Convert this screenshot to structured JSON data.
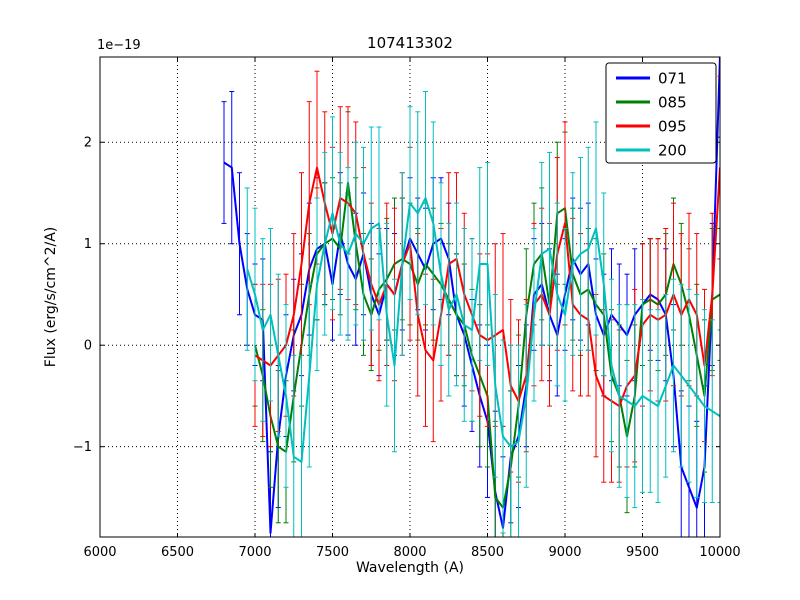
{
  "figure": {
    "background": "#ffffff",
    "frame_color": "#000000"
  },
  "chart_data": {
    "type": "line",
    "title": "107413302",
    "xlabel": "Wavelength (A)",
    "ylabel": "Flux (erg/s/cm^2/A)",
    "y_offset_label": "1e−19",
    "xlim": [
      6000,
      10000
    ],
    "ylim": [
      -1.89,
      2.84
    ],
    "xticks": [
      6000,
      6500,
      7000,
      7500,
      8000,
      8500,
      9000,
      9500,
      10000
    ],
    "xticklabels": [
      "6000",
      "6500",
      "7000",
      "7500",
      "8000",
      "8500",
      "9000",
      "9500",
      "10000"
    ],
    "yticks": [
      -1,
      0,
      1,
      2
    ],
    "yticklabels": [
      "−1",
      "0",
      "1",
      "2"
    ],
    "grid": true,
    "grid_style": "dotted",
    "legend_position": "upper right",
    "series": [
      {
        "name": "071",
        "color": "#0000ff",
        "x_start": 6800,
        "x_step": 50,
        "y": [
          1.8,
          1.75,
          1.0,
          0.55,
          0.3,
          0.25,
          -1.85,
          -0.9,
          -0.3,
          0.1,
          0.3,
          0.75,
          0.95,
          1.0,
          0.6,
          1.1,
          0.8,
          0.65,
          0.9,
          0.5,
          0.3,
          0.6,
          0.5,
          0.8,
          1.05,
          0.9,
          0.75,
          1.0,
          1.05,
          0.85,
          0.3,
          0.1,
          -0.2,
          -0.5,
          -0.75,
          -1.45,
          -1.8,
          -1.1,
          -0.9,
          -0.4,
          0.5,
          0.6,
          0.3,
          0.1,
          0.5,
          0.85,
          0.7,
          0.8,
          0.3,
          0.1,
          0.3,
          0.2,
          0.1,
          0.3,
          0.4,
          0.5,
          0.45,
          0.3,
          -0.3,
          -1.2,
          -1.4,
          -1.6,
          -1.2,
          0.5,
          2.85
        ],
        "yerr": [
          0.6,
          0.75,
          0.7,
          0.55,
          0.5,
          0.6,
          0.8,
          0.7,
          0.6,
          0.55,
          0.6,
          0.65,
          0.7,
          0.6,
          0.55,
          0.6,
          0.7,
          0.65,
          0.6,
          0.7,
          0.6,
          0.55,
          0.6,
          0.65,
          0.6,
          0.55,
          0.6,
          0.65,
          0.6,
          0.55,
          0.6,
          0.7,
          0.65,
          0.7,
          0.75,
          0.8,
          0.7,
          0.65,
          0.7,
          0.6,
          0.55,
          0.6,
          0.65,
          0.6,
          0.55,
          0.6,
          0.65,
          0.6,
          0.55,
          0.6,
          0.65,
          0.6,
          0.6,
          0.65,
          0.6,
          0.55,
          0.6,
          0.65,
          0.7,
          0.75,
          0.8,
          0.85,
          0.8,
          0.7,
          0.8
        ]
      },
      {
        "name": "085",
        "color": "#008000",
        "x_start": 7000,
        "x_step": 50,
        "y": [
          0.0,
          -0.3,
          -0.7,
          -1.0,
          -1.05,
          -0.5,
          0.0,
          0.5,
          0.9,
          1.0,
          1.05,
          0.95,
          1.6,
          1.0,
          0.5,
          0.3,
          0.55,
          0.65,
          0.8,
          0.85,
          0.8,
          0.6,
          0.8,
          0.7,
          0.6,
          0.45,
          0.3,
          0.2,
          -0.1,
          -0.3,
          -0.5,
          -1.5,
          -1.6,
          -1.2,
          -0.6,
          0.3,
          0.8,
          0.9,
          0.4,
          1.3,
          1.35,
          0.7,
          0.5,
          0.55,
          0.4,
          0.3,
          -0.3,
          -0.5,
          -0.9,
          -0.5,
          0.4,
          0.45,
          0.4,
          0.5,
          0.8,
          0.6,
          0.3,
          -0.1,
          -0.5,
          0.45,
          0.5
        ],
        "yerr": [
          0.6,
          0.65,
          0.7,
          0.75,
          0.7,
          0.65,
          0.6,
          0.6,
          0.65,
          0.6,
          0.6,
          0.65,
          0.7,
          0.65,
          0.6,
          0.55,
          0.6,
          0.6,
          0.65,
          0.6,
          0.6,
          0.55,
          0.6,
          0.65,
          0.6,
          0.55,
          0.6,
          0.6,
          0.65,
          0.7,
          0.7,
          0.75,
          0.8,
          0.75,
          0.7,
          0.65,
          0.6,
          0.65,
          0.6,
          0.7,
          0.75,
          0.65,
          0.6,
          0.6,
          0.65,
          0.6,
          0.65,
          0.7,
          0.75,
          0.7,
          0.6,
          0.6,
          0.65,
          0.6,
          0.65,
          0.6,
          0.65,
          0.7,
          0.75,
          0.7,
          0.65
        ]
      },
      {
        "name": "095",
        "color": "#ff0000",
        "x_start": 7000,
        "x_step": 50,
        "y": [
          -0.1,
          -0.15,
          -0.2,
          -0.1,
          0.0,
          0.3,
          0.8,
          1.4,
          1.75,
          1.4,
          1.1,
          1.45,
          1.4,
          1.3,
          0.9,
          0.6,
          0.4,
          0.6,
          0.5,
          0.8,
          1.0,
          0.3,
          -0.05,
          -0.15,
          0.3,
          0.8,
          0.85,
          0.5,
          0.3,
          0.1,
          0.05,
          0.1,
          0.15,
          -0.4,
          -0.55,
          -0.3,
          0.4,
          0.5,
          0.3,
          0.9,
          1.2,
          0.4,
          0.3,
          0.25,
          -0.3,
          -0.5,
          -0.55,
          -0.6,
          -0.4,
          -0.3,
          0.2,
          0.3,
          0.25,
          0.3,
          0.5,
          0.3,
          0.45,
          0.3,
          -0.2,
          0.5,
          1.75
        ],
        "yerr": [
          0.7,
          0.75,
          0.8,
          0.75,
          0.7,
          0.8,
          0.9,
          1.0,
          0.95,
          0.9,
          0.85,
          0.9,
          0.95,
          0.9,
          0.85,
          0.8,
          0.75,
          0.8,
          0.85,
          0.9,
          0.95,
          0.8,
          0.75,
          0.8,
          0.85,
          0.9,
          0.85,
          0.8,
          0.75,
          0.8,
          0.85,
          0.9,
          0.95,
          0.85,
          0.8,
          0.75,
          0.8,
          0.85,
          0.9,
          0.95,
          1.0,
          0.85,
          0.8,
          0.75,
          0.8,
          0.85,
          0.8,
          0.75,
          0.8,
          0.85,
          0.8,
          0.75,
          0.8,
          0.85,
          0.9,
          0.8,
          0.85,
          0.8,
          0.75,
          0.8,
          0.9
        ]
      },
      {
        "name": "200",
        "color": "#00bfbf",
        "x_start": 6950,
        "x_step": 50,
        "y": [
          0.75,
          0.5,
          0.15,
          0.3,
          -0.1,
          -0.5,
          -1.1,
          -1.15,
          -0.3,
          0.6,
          1.0,
          1.3,
          1.0,
          0.9,
          1.1,
          1.0,
          1.15,
          1.2,
          0.3,
          -0.2,
          0.8,
          1.4,
          1.3,
          1.45,
          1.2,
          0.7,
          0.35,
          0.5,
          0.2,
          0.15,
          0.8,
          0.8,
          -0.4,
          -0.9,
          -1.0,
          -0.95,
          -0.5,
          0.3,
          0.9,
          0.95,
          0.5,
          0.3,
          0.8,
          0.9,
          0.95,
          1.15,
          0.6,
          -0.2,
          -0.5,
          -0.55,
          -0.6,
          -0.5,
          -0.55,
          -0.6,
          -0.4,
          -0.2,
          -0.3,
          -0.4,
          -0.5,
          -0.6,
          -0.65,
          -0.7
        ],
        "yerr": [
          0.8,
          0.85,
          0.9,
          0.85,
          0.8,
          0.9,
          1.0,
          1.05,
          0.9,
          0.85,
          0.9,
          0.95,
          0.9,
          0.85,
          0.9,
          0.95,
          1.0,
          0.95,
          0.9,
          0.85,
          0.9,
          0.95,
          1.0,
          1.05,
          1.0,
          0.9,
          0.85,
          0.9,
          0.95,
          0.9,
          0.95,
          1.0,
          0.9,
          0.95,
          1.0,
          0.95,
          0.9,
          0.85,
          0.9,
          0.95,
          0.9,
          0.85,
          0.9,
          0.95,
          1.0,
          1.05,
          0.9,
          0.85,
          0.9,
          0.95,
          1.0,
          0.95,
          0.9,
          0.95,
          0.9,
          0.85,
          0.9,
          0.95,
          1.0,
          0.95,
          0.9,
          0.85
        ]
      }
    ]
  }
}
